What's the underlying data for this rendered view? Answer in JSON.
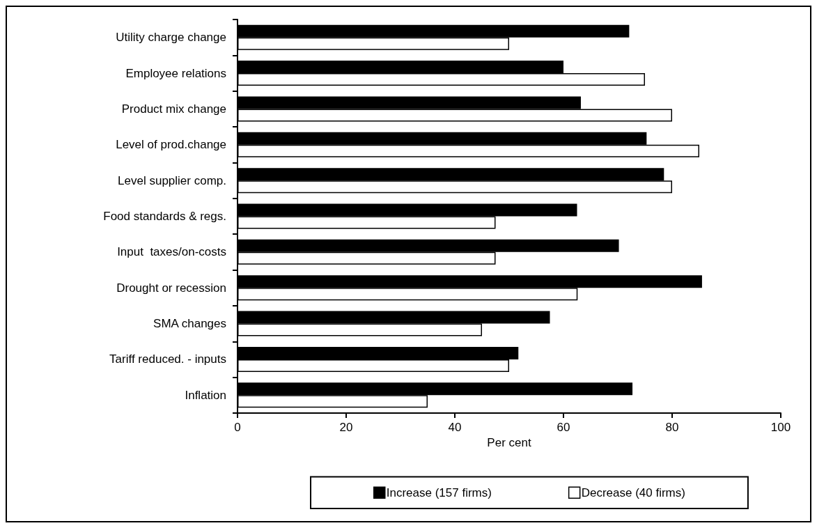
{
  "chart_data": {
    "type": "bar",
    "orientation": "horizontal",
    "xlabel": "Per cent",
    "categories": [
      "Utility charge change",
      "Employee relations",
      "Product mix change",
      "Level of prod.change",
      "Level supplier comp.",
      "Food standards & regs.",
      "Input  taxes/on-costs",
      "Drought or recession",
      "SMA changes",
      "Tariff reduced. - inputs",
      "Inflation"
    ],
    "series": [
      {
        "name": "Increase (157 firms)",
        "color": "#000000",
        "values": [
          72.1,
          60.0,
          63.2,
          75.3,
          78.5,
          62.5,
          70.2,
          85.5,
          57.5,
          51.7,
          72.7
        ]
      },
      {
        "name": "Decrease (40 firms)",
        "color": "#ffffff",
        "values": [
          50.0,
          75.0,
          80.0,
          85.0,
          80.0,
          47.5,
          47.5,
          62.6,
          45.0,
          50.0,
          35.0
        ]
      }
    ],
    "xlim": [
      0,
      100
    ],
    "xticks": [
      0,
      20,
      40,
      60,
      80,
      100
    ],
    "grid": false,
    "legend": "bottom"
  }
}
